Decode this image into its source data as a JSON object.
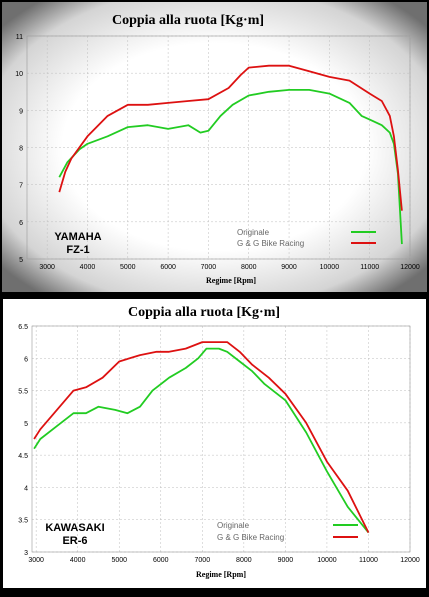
{
  "colors": {
    "page_background": "#000000",
    "top_panel_outer": "#ffffff",
    "top_panel_vignette": "#6f6f6f",
    "bottom_panel_background": "#ffffff",
    "gridline": "#bdbdbd",
    "series_originale": "#22cc22",
    "series_gg": "#dd1111"
  },
  "chart_data": [
    {
      "type": "line",
      "title": "Coppia alla ruota  [Kg·m]",
      "xlabel": "Regime [Rpm]",
      "ylabel": "",
      "bike_label": [
        "YAMAHA",
        "FZ-1"
      ],
      "xlim": [
        2500,
        12000
      ],
      "ylim": [
        5,
        11
      ],
      "x_ticks": [
        3000,
        4000,
        5000,
        6000,
        7000,
        8000,
        9000,
        10000,
        11000,
        12000
      ],
      "y_ticks": [
        5,
        6,
        7,
        8,
        9,
        10,
        11
      ],
      "grid": true,
      "legend_position": "bottom-center",
      "series": [
        {
          "name": "Originale",
          "color": "#22cc22",
          "x": [
            3300,
            3500,
            3800,
            4000,
            4500,
            5000,
            5500,
            6000,
            6500,
            6800,
            7000,
            7300,
            7600,
            8000,
            8500,
            9000,
            9500,
            10000,
            10500,
            10800,
            11000,
            11300,
            11500,
            11600,
            11700,
            11800
          ],
          "y": [
            7.2,
            7.6,
            7.95,
            8.1,
            8.3,
            8.55,
            8.6,
            8.5,
            8.6,
            8.4,
            8.45,
            8.85,
            9.15,
            9.4,
            9.5,
            9.55,
            9.55,
            9.45,
            9.2,
            8.85,
            8.75,
            8.6,
            8.4,
            8.1,
            7.3,
            5.4
          ]
        },
        {
          "name": "G & G Bike Racing",
          "color": "#dd1111",
          "x": [
            3300,
            3450,
            3600,
            4000,
            4500,
            5000,
            5500,
            6000,
            6500,
            7000,
            7500,
            7800,
            8000,
            8500,
            9000,
            9500,
            10000,
            10500,
            11000,
            11300,
            11500,
            11600,
            11700,
            11800
          ],
          "y": [
            6.8,
            7.35,
            7.7,
            8.3,
            8.85,
            9.15,
            9.15,
            9.2,
            9.25,
            9.3,
            9.6,
            9.95,
            10.15,
            10.2,
            10.2,
            10.05,
            9.9,
            9.8,
            9.45,
            9.25,
            8.85,
            8.3,
            7.4,
            6.3
          ]
        }
      ]
    },
    {
      "type": "line",
      "title": "Coppia alla ruota [Kg·m]",
      "xlabel": "Regime [Rpm]",
      "ylabel": "",
      "bike_label": [
        "KAWASAKI",
        "ER-6"
      ],
      "xlim": [
        2900,
        12000
      ],
      "ylim": [
        3,
        6.5
      ],
      "x_ticks": [
        3000,
        4000,
        5000,
        6000,
        7000,
        8000,
        9000,
        10000,
        11000,
        12000
      ],
      "y_ticks": [
        3,
        3.5,
        4,
        4.5,
        5,
        5.5,
        6,
        6.5
      ],
      "grid": true,
      "legend_position": "bottom-center",
      "series": [
        {
          "name": "Originale",
          "color": "#22cc22",
          "x": [
            2950,
            3100,
            3500,
            3900,
            4200,
            4500,
            4900,
            5200,
            5500,
            5800,
            6200,
            6600,
            6900,
            7100,
            7400,
            7600,
            7900,
            8200,
            8500,
            9000,
            9500,
            10000,
            10500,
            11000
          ],
          "y": [
            4.6,
            4.75,
            4.95,
            5.15,
            5.15,
            5.25,
            5.2,
            5.15,
            5.25,
            5.5,
            5.7,
            5.85,
            6.0,
            6.15,
            6.15,
            6.1,
            5.95,
            5.8,
            5.6,
            5.35,
            4.85,
            4.25,
            3.7,
            3.3
          ]
        },
        {
          "name": "G & G Bike Racing",
          "color": "#dd1111",
          "x": [
            2950,
            3100,
            3500,
            3900,
            4200,
            4600,
            5000,
            5500,
            5900,
            6200,
            6600,
            7000,
            7300,
            7600,
            7900,
            8200,
            8600,
            9000,
            9500,
            10000,
            10500,
            11000
          ],
          "y": [
            4.75,
            4.9,
            5.2,
            5.5,
            5.55,
            5.7,
            5.95,
            6.05,
            6.1,
            6.1,
            6.15,
            6.25,
            6.25,
            6.25,
            6.1,
            5.9,
            5.7,
            5.45,
            5.0,
            4.4,
            3.95,
            3.3
          ]
        }
      ]
    }
  ]
}
